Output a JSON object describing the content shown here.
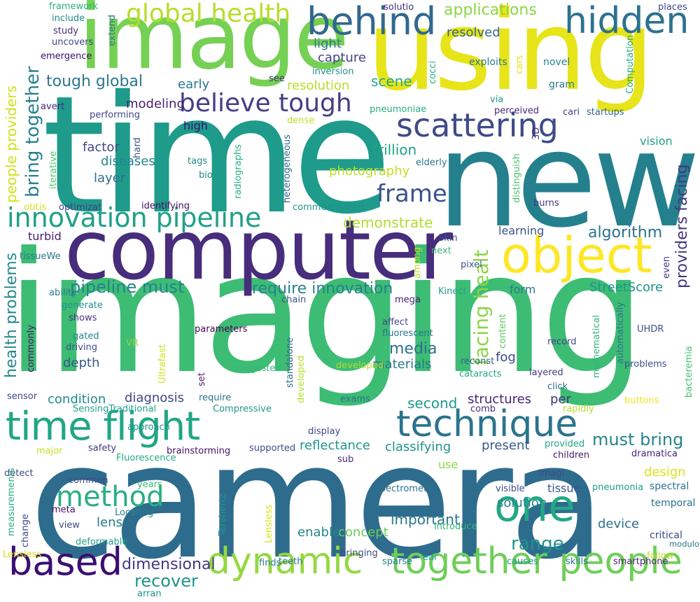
{
  "words": [
    {
      "text": "camera",
      "color": "#2e6c8e"
    },
    {
      "text": "imaging",
      "color": "#3dbc74"
    },
    {
      "text": "time",
      "color": "#1e9b8a"
    },
    {
      "text": "computer",
      "color": "#472d7b"
    },
    {
      "text": "new",
      "color": "#25808e"
    },
    {
      "text": "using",
      "color": "#e7e419"
    },
    {
      "text": "image",
      "color": "#75d054"
    },
    {
      "text": "time flight",
      "color": "#21a685"
    },
    {
      "text": "technique",
      "color": "#2c738e"
    },
    {
      "text": "dynamic",
      "color": "#95d840"
    },
    {
      "text": "together people",
      "color": "#6ece58"
    },
    {
      "text": "based",
      "color": "#3b0f70"
    },
    {
      "text": "one",
      "color": "#22a884"
    },
    {
      "text": "object",
      "color": "#fde725"
    },
    {
      "text": "behind",
      "color": "#31688e"
    },
    {
      "text": "hidden",
      "color": "#2c728e"
    },
    {
      "text": "scattering",
      "color": "#3e4a89"
    },
    {
      "text": "innovation pipeline",
      "color": "#1fa188"
    },
    {
      "text": "believe tough",
      "color": "#433e85"
    },
    {
      "text": "global health",
      "color": "#b5de2b"
    },
    {
      "text": "method",
      "color": "#29af7f"
    },
    {
      "text": "frame",
      "color": "#3b528b"
    },
    {
      "text": "must bring",
      "color": "#25848e"
    },
    {
      "text": "pipeline must",
      "color": "#26818e"
    },
    {
      "text": "require innovation",
      "color": "#27808e"
    },
    {
      "text": "dimensional",
      "color": "#443983"
    },
    {
      "text": "recover",
      "color": "#1f948c"
    },
    {
      "text": "second",
      "color": "#1f9a8a"
    },
    {
      "text": "range",
      "color": "#1f968b"
    },
    {
      "text": "important",
      "color": "#2a768e"
    },
    {
      "text": "solution",
      "color": "#277f8e"
    },
    {
      "text": "media",
      "color": "#2d718e"
    },
    {
      "text": "applications",
      "color": "#8bd646"
    },
    {
      "text": "resolved",
      "color": "#31688e"
    },
    {
      "text": "tough global",
      "color": "#2a788e"
    },
    {
      "text": "modeling",
      "color": "#481f70"
    },
    {
      "text": "early",
      "color": "#2a768e"
    },
    {
      "text": "scene",
      "color": "#22a785"
    },
    {
      "text": "light",
      "color": "#297a8e"
    },
    {
      "text": "capture",
      "color": "#414487"
    },
    {
      "text": "resolution",
      "color": "#b8de29"
    },
    {
      "text": "trillion",
      "color": "#20a386"
    },
    {
      "text": "algorithm",
      "color": "#2c728e"
    },
    {
      "text": "demonstrate",
      "color": "#b0dd2f"
    },
    {
      "text": "photography",
      "color": "#bddf26"
    },
    {
      "text": "factor",
      "color": "#3e4a89"
    },
    {
      "text": "diseases",
      "color": "#25858e"
    },
    {
      "text": "layer",
      "color": "#2f6c8e"
    },
    {
      "text": "high",
      "color": "#3b0f70"
    },
    {
      "text": "vision",
      "color": "#1fa187"
    },
    {
      "text": "form",
      "color": "#2a788e"
    },
    {
      "text": "StreetScore",
      "color": "#1f958b"
    },
    {
      "text": "learning",
      "color": "#3b528b"
    },
    {
      "text": "fog",
      "color": "#3e4989"
    },
    {
      "text": "depth",
      "color": "#38598c"
    },
    {
      "text": "diagnosis",
      "color": "#3f4788"
    },
    {
      "text": "condition",
      "color": "#23898e"
    },
    {
      "text": "structures",
      "color": "#482475"
    },
    {
      "text": "per",
      "color": "#46327e"
    },
    {
      "text": "materials",
      "color": "#2a788e"
    },
    {
      "text": "reflectance",
      "color": "#1f968b"
    },
    {
      "text": "classifying",
      "color": "#20928c"
    },
    {
      "text": "present",
      "color": "#38598c"
    },
    {
      "text": "use",
      "color": "#8ed645"
    },
    {
      "text": "design",
      "color": "#dde318"
    },
    {
      "text": "spectral",
      "color": "#2c738e"
    },
    {
      "text": "temporal",
      "color": "#2d708e"
    },
    {
      "text": "device",
      "color": "#2d708e"
    },
    {
      "text": "critical",
      "color": "#3e4989"
    },
    {
      "text": "tissue",
      "color": "#3a548c"
    },
    {
      "text": "lens",
      "color": "#297b8e"
    },
    {
      "text": "concept",
      "color": "#6ccd5a"
    },
    {
      "text": "enable",
      "color": "#25858e"
    },
    {
      "text": "bring together",
      "color": "#26828e"
    },
    {
      "text": "facing healt",
      "color": "#8bd646"
    },
    {
      "text": "health problems",
      "color": "#23888e"
    },
    {
      "text": "people providers",
      "color": "#d0e11c"
    },
    {
      "text": "providers facing",
      "color": "#453781"
    },
    {
      "text": "framework",
      "color": "#2ab07f"
    },
    {
      "text": "include",
      "color": "#24878e"
    },
    {
      "text": "study",
      "color": "#472c7a"
    },
    {
      "text": "uncovers",
      "color": "#404588"
    },
    {
      "text": "emergence",
      "color": "#3b0f70"
    },
    {
      "text": "extend",
      "color": "#2c738e"
    },
    {
      "text": "solutio",
      "color": "#472f7d"
    },
    {
      "text": "places",
      "color": "#3e4a89"
    },
    {
      "text": "exploits",
      "color": "#29798e"
    },
    {
      "text": "novel",
      "color": "#24868e"
    },
    {
      "text": "gram",
      "color": "#2a778e"
    },
    {
      "text": "inversion",
      "color": "#21918c"
    },
    {
      "text": "see",
      "color": "#472f7d"
    },
    {
      "text": "cocci",
      "color": "#2ab07f"
    },
    {
      "text": "cars",
      "color": "#e2e418"
    },
    {
      "text": "via",
      "color": "#1f9e89"
    },
    {
      "text": "Computation",
      "color": "#26ad81"
    },
    {
      "text": "perceived",
      "color": "#482878"
    },
    {
      "text": "cari",
      "color": "#404688"
    },
    {
      "text": "startups",
      "color": "#31668e"
    },
    {
      "text": "pneumoniae",
      "color": "#27ad81"
    },
    {
      "text": "dense",
      "color": "#c2df23"
    },
    {
      "text": "avert",
      "color": "#482576"
    },
    {
      "text": "performing",
      "color": "#3f4889"
    },
    {
      "text": "hard",
      "color": "#39568c"
    },
    {
      "text": "3D",
      "color": "#46337f"
    },
    {
      "text": "tags",
      "color": "#24878e"
    },
    {
      "text": "bio",
      "color": "#24878e"
    },
    {
      "text": "radiographs",
      "color": "#2ab07f"
    },
    {
      "text": "heterogeneous",
      "color": "#32658e"
    },
    {
      "text": "elderly",
      "color": "#2a788e"
    },
    {
      "text": "distinguish",
      "color": "#4ec36b"
    },
    {
      "text": "iterative",
      "color": "#4ec36b"
    },
    {
      "text": "otitis",
      "color": "#d5e21a"
    },
    {
      "text": "optimizat",
      "color": "#424086"
    },
    {
      "text": "identifying",
      "color": "#460b5e"
    },
    {
      "text": "commercialized",
      "color": "#21918c"
    },
    {
      "text": "burns",
      "color": "#463480"
    },
    {
      "text": "turbid",
      "color": "#482173"
    },
    {
      "text": "Skin",
      "color": "#3e4a89"
    },
    {
      "text": "next",
      "color": "#3aba76"
    },
    {
      "text": "among",
      "color": "#c0df25"
    },
    {
      "text": "pixel",
      "color": "#39568c"
    },
    {
      "text": "tissueWe",
      "color": "#2a788e"
    },
    {
      "text": "ability",
      "color": "#297b8e"
    },
    {
      "text": "Kinect",
      "color": "#1fa188"
    },
    {
      "text": "even",
      "color": "#46337f"
    },
    {
      "text": "chain",
      "color": "#39558c"
    },
    {
      "text": "mega",
      "color": "#482071"
    },
    {
      "text": "generate",
      "color": "#20928c"
    },
    {
      "text": "shows",
      "color": "#46337f"
    },
    {
      "text": "affect",
      "color": "#3e4989"
    },
    {
      "text": "fluorescent",
      "color": "#2b758e"
    },
    {
      "text": "content",
      "color": "#5ec962"
    },
    {
      "text": "gated",
      "color": "#25858e"
    },
    {
      "text": "driving",
      "color": "#3b528b"
    },
    {
      "text": "commonly",
      "color": "#481769"
    },
    {
      "text": "VR",
      "color": "#8bd646"
    },
    {
      "text": "Ultrafast",
      "color": "#cde11d"
    },
    {
      "text": "parameters",
      "color": "#440154"
    },
    {
      "text": "automatically",
      "color": "#2b758e"
    },
    {
      "text": "mathematical",
      "color": "#34b679"
    },
    {
      "text": "UHDR",
      "color": "#3b528b"
    },
    {
      "text": "record",
      "color": "#414487"
    },
    {
      "text": "layered",
      "color": "#443a83"
    },
    {
      "text": "reconst",
      "color": "#32658e"
    },
    {
      "text": "cataracts",
      "color": "#22a884"
    },
    {
      "text": "problems",
      "color": "#3b528b"
    },
    {
      "text": "bacteremia",
      "color": "#46c06f"
    },
    {
      "text": "suggested",
      "color": "#35b779"
    },
    {
      "text": "set",
      "color": "#482173"
    },
    {
      "text": "standalone",
      "color": "#31678e"
    },
    {
      "text": "developed",
      "color": "#b5de2b"
    },
    {
      "text": "click",
      "color": "#2e6d8e"
    },
    {
      "text": "sensor",
      "color": "#3e4989"
    },
    {
      "text": "require",
      "color": "#2c738e"
    },
    {
      "text": "SensingTraditional",
      "color": "#1f9e89"
    },
    {
      "text": "Compressive",
      "color": "#1f968b"
    },
    {
      "text": "exams",
      "color": "#2c728e"
    },
    {
      "text": "comb",
      "color": "#472d7b"
    },
    {
      "text": "rapidly",
      "color": "#b8de29"
    },
    {
      "text": "buttons",
      "color": "#f1e51d"
    },
    {
      "text": "approach",
      "color": "#21918c"
    },
    {
      "text": "display",
      "color": "#3f4788"
    },
    {
      "text": "major",
      "color": "#c2df23"
    },
    {
      "text": "safety",
      "color": "#443983"
    },
    {
      "text": "brainstorming",
      "color": "#471063"
    },
    {
      "text": "supported",
      "color": "#3d4e8a"
    },
    {
      "text": "provided",
      "color": "#20a486"
    },
    {
      "text": "children",
      "color": "#481b6d"
    },
    {
      "text": "dramatica",
      "color": "#482576"
    },
    {
      "text": "Fluorescence",
      "color": "#22a884"
    },
    {
      "text": "sub",
      "color": "#482878"
    },
    {
      "text": "detect",
      "color": "#3e4989"
    },
    {
      "text": "common",
      "color": "#3e4a89"
    },
    {
      "text": "imagi",
      "color": "#3e4a89"
    },
    {
      "text": "years",
      "color": "#38b977"
    },
    {
      "text": "Terahertz",
      "color": "#1f958b"
    },
    {
      "text": "spectrometer",
      "color": "#2d718e"
    },
    {
      "text": "visible",
      "color": "#3e4989"
    },
    {
      "text": "pneumonia",
      "color": "#1fa088"
    },
    {
      "text": "meta",
      "color": "#471164"
    },
    {
      "text": "Locating",
      "color": "#26828e"
    },
    {
      "text": "view",
      "color": "#3e4989"
    },
    {
      "text": "change",
      "color": "#3e4a89"
    },
    {
      "text": "measurements",
      "color": "#2ab07f"
    },
    {
      "text": "Lensless",
      "color": "#d8e219"
    },
    {
      "text": "deformable",
      "color": "#1f9e89"
    },
    {
      "text": "introduce",
      "color": "#34b679"
    },
    {
      "text": "bringing",
      "color": "#3e4989"
    },
    {
      "text": "finds",
      "color": "#277f8e"
    },
    {
      "text": "teeth",
      "color": "#2c738e"
    },
    {
      "text": "ear",
      "color": "#1f9e89"
    },
    {
      "text": "sparse",
      "color": "#25858e"
    },
    {
      "text": "causes",
      "color": "#1f968b"
    },
    {
      "text": "skills",
      "color": "#2b758e"
    },
    {
      "text": "smartphone",
      "color": "#482475"
    },
    {
      "text": "modulo",
      "color": "#2c738e"
    },
    {
      "text": "follow",
      "color": "#bddf26"
    },
    {
      "text": "arran",
      "color": "#20928c"
    },
    {
      "text": "LearningA",
      "color": "#26828e"
    },
    {
      "text": "platform",
      "color": "#46337f"
    }
  ]
}
